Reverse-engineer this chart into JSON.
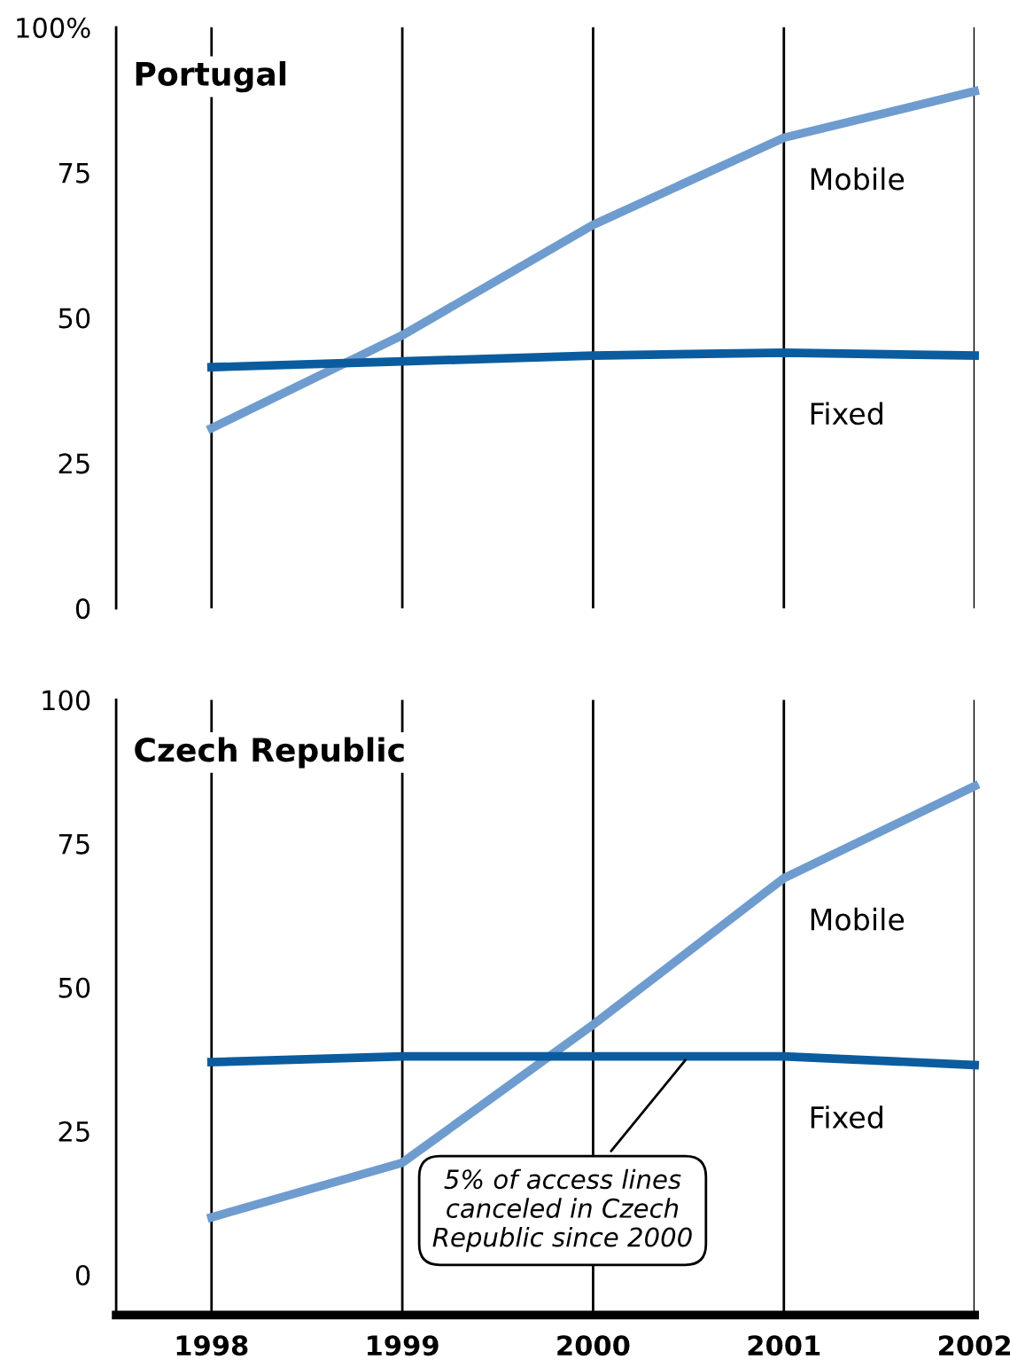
{
  "chart_data": [
    {
      "type": "line",
      "title": "Portugal",
      "x": [
        1998,
        1999,
        2000,
        2001,
        2002
      ],
      "xlim": [
        1997.5,
        2002
      ],
      "xticks": [
        1998,
        1999,
        2000,
        2001,
        2002
      ],
      "ylim": [
        0,
        100
      ],
      "yticks": [
        0,
        25,
        50,
        75,
        {
          "value": 100,
          "label": "100%"
        }
      ],
      "grid": "x",
      "legend": false,
      "tick_labels": "y",
      "series": [
        {
          "name": "Mobile",
          "color": "#6f9ccf",
          "values": [
            31,
            47,
            66,
            81,
            89
          ]
        },
        {
          "name": "Fixed",
          "color": "#0b5c9e",
          "values": [
            41.5,
            42.5,
            43.5,
            44,
            43.5
          ]
        }
      ]
    },
    {
      "type": "line",
      "title": "Czech Republic",
      "x": [
        1998,
        1999,
        2000,
        2001,
        2002
      ],
      "xlim": [
        1997.5,
        2002
      ],
      "xticks": [
        1998,
        1999,
        2000,
        2001,
        2002
      ],
      "ylim": [
        -7,
        100
      ],
      "yticks": [
        0,
        25,
        50,
        75,
        100
      ],
      "grid": "x",
      "legend": false,
      "series": [
        {
          "name": "Mobile",
          "color": "#6f9ccf",
          "values": [
            10,
            19.5,
            43.5,
            69,
            85
          ]
        },
        {
          "name": "Fixed",
          "color": "#0b5c9e",
          "values": [
            37,
            38,
            38,
            38,
            36.5
          ]
        }
      ],
      "annotations": [
        {
          "text": "5% of access lines\ncanceled in Czech\nRepublic since 2000",
          "x": 2000.5,
          "y": 38
        }
      ]
    }
  ]
}
